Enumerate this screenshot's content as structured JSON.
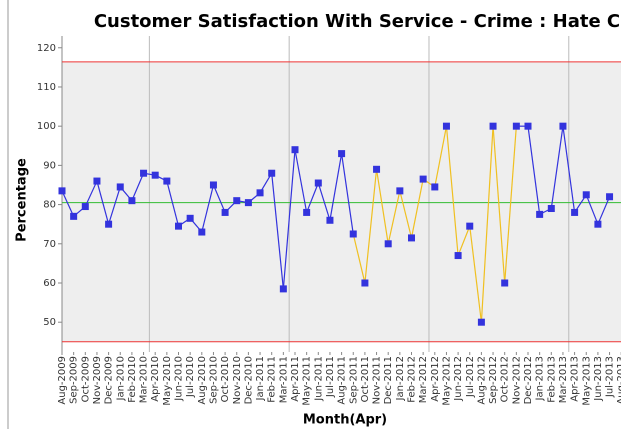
{
  "chart_data": {
    "type": "control",
    "title": "Customer Satisfaction With Service - Crime : Hate Crime",
    "y_label": "Percentage",
    "x_label": "Month(Apr)",
    "categories": [
      "Aug-2009",
      "Sep-2009",
      "Oct-2009",
      "Nov-2009",
      "Dec-2009",
      "Jan-2010",
      "Feb-2010",
      "Mar-2010",
      "Apr-2010",
      "May-2010",
      "Jun-2010",
      "Jul-2010",
      "Aug-2010",
      "Sep-2010",
      "Oct-2010",
      "Nov-2010",
      "Dec-2010",
      "Jan-2011",
      "Feb-2011",
      "Mar-2011",
      "Apr-2011",
      "May-2011",
      "Jun-2011",
      "Jul-2011",
      "Aug-2011",
      "Sep-2011",
      "Oct-2011",
      "Nov-2011",
      "Dec-2011",
      "Jan-2012",
      "Feb-2012",
      "Mar-2012",
      "Apr-2012",
      "May-2012",
      "Jun-2012",
      "Jul-2012",
      "Aug-2012",
      "Sep-2012",
      "Oct-2012",
      "Nov-2012",
      "Dec-2012",
      "Jan-2013",
      "Feb-2013",
      "Mar-2013",
      "Apr-2013",
      "May-2013",
      "Jun-2013",
      "Jul-2013",
      "Aug-2013"
    ],
    "values": [
      83.5,
      77,
      79.5,
      86,
      75,
      84.5,
      81,
      88,
      87.5,
      86,
      74.5,
      76.5,
      73,
      85,
      78,
      81,
      80.5,
      83,
      88,
      58.5,
      94,
      78,
      85.5,
      76,
      93,
      72.5,
      60,
      89,
      70,
      83.5,
      71.5,
      86.5,
      84.5,
      100,
      67,
      74.5,
      50,
      100,
      60,
      100,
      100,
      77.5,
      79,
      100,
      78,
      82.5,
      75,
      82,
      null
    ],
    "color": "#3333dd",
    "highlight": {
      "from": 25,
      "to": 39,
      "color": "#f0c020"
    },
    "center_line": 80.5,
    "center_color": "#33bb33",
    "upper_limit": 116.4,
    "lower_limit": 45,
    "limit_color": "#ee3333",
    "ylim": [
      42.4,
      123
    ],
    "yticks": [
      50,
      60,
      70,
      80,
      90,
      100,
      110,
      120
    ]
  }
}
